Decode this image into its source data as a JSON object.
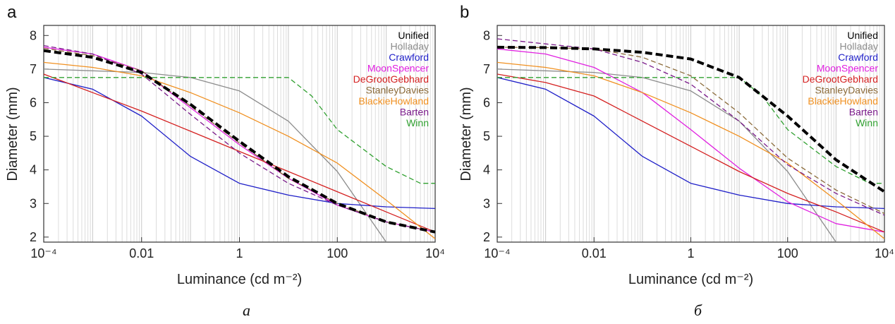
{
  "chart_data": [
    {
      "type": "line",
      "panel_label": "a",
      "caption": "a",
      "xlabel": "Luminance (cd m⁻²)",
      "ylabel": "Diameter (mm)",
      "xscale": "log",
      "xlim": [
        0.0001,
        10000
      ],
      "ylim": [
        1.85,
        8.3
      ],
      "xticks": [
        {
          "value": 0.0001,
          "label": "10⁻⁴"
        },
        {
          "value": 0.01,
          "label": "0.01"
        },
        {
          "value": 1,
          "label": "1"
        },
        {
          "value": 100,
          "label": "100"
        },
        {
          "value": 10000,
          "label": "10⁴"
        }
      ],
      "yticks": [
        2,
        3,
        4,
        5,
        6,
        7,
        8
      ],
      "grid": "vertical minor lines",
      "legend": "top-right",
      "series": [
        {
          "name": "Unified",
          "color": "#000000",
          "style": "thick-dashed",
          "x": [
            0.0001,
            0.001,
            0.01,
            0.1,
            1,
            10,
            100,
            1000,
            10000
          ],
          "y": [
            7.55,
            7.35,
            6.9,
            5.95,
            4.85,
            3.8,
            3.0,
            2.45,
            2.15
          ]
        },
        {
          "name": "Holladay",
          "color": "#8c8c8c",
          "style": "solid",
          "x": [
            0.0001,
            0.001,
            0.01,
            0.1,
            1,
            10,
            100,
            1000
          ],
          "y": [
            7.0,
            6.95,
            6.9,
            6.75,
            6.35,
            5.45,
            3.95,
            1.85
          ]
        },
        {
          "name": "Crawford",
          "color": "#1f1fc8",
          "style": "solid",
          "x": [
            0.0001,
            0.001,
            0.01,
            0.1,
            1,
            10,
            100,
            1000,
            10000
          ],
          "y": [
            6.75,
            6.4,
            5.6,
            4.4,
            3.6,
            3.25,
            3.0,
            2.9,
            2.85
          ]
        },
        {
          "name": "MoonSpencer",
          "color": "#e020e0",
          "style": "solid",
          "x": [
            0.0001,
            0.001,
            0.01,
            0.1,
            1,
            10,
            100,
            1000,
            10000
          ],
          "y": [
            7.65,
            7.45,
            6.95,
            5.85,
            4.75,
            3.75,
            2.95,
            2.45,
            2.15
          ]
        },
        {
          "name": "DeGrootGebhard",
          "color": "#d42020",
          "style": "solid",
          "x": [
            0.0001,
            0.001,
            0.01,
            0.1,
            1,
            10,
            100,
            1000,
            10000
          ],
          "y": [
            6.85,
            6.3,
            5.75,
            5.15,
            4.55,
            3.95,
            3.35,
            2.75,
            2.15
          ]
        },
        {
          "name": "StanleyDavies",
          "color": "#8b6b3a",
          "style": "dashed",
          "x": [
            0.0001,
            0.001,
            0.01,
            0.1,
            1,
            10,
            100,
            1000,
            10000
          ],
          "y": [
            7.62,
            7.4,
            6.95,
            5.9,
            4.8,
            3.75,
            3.0,
            2.45,
            2.15
          ]
        },
        {
          "name": "BlackieHowland",
          "color": "#f09020",
          "style": "solid",
          "x": [
            0.0001,
            0.001,
            0.01,
            0.1,
            1,
            10,
            100,
            1000,
            10000
          ],
          "y": [
            7.2,
            7.05,
            6.8,
            6.3,
            5.7,
            5.0,
            4.2,
            3.1,
            1.95
          ]
        },
        {
          "name": "Barten",
          "color": "#7a1a8a",
          "style": "dashed",
          "x": [
            0.0001,
            0.001,
            0.01,
            0.1,
            1,
            10,
            100,
            1000,
            10000
          ],
          "y": [
            7.7,
            7.45,
            6.85,
            5.65,
            4.5,
            3.6,
            2.95,
            2.45,
            2.15
          ]
        },
        {
          "name": "Winn",
          "color": "#30a030",
          "style": "dashed",
          "x": [
            0.0001,
            0.01,
            1,
            10,
            30,
            100,
            1000,
            5000,
            10000
          ],
          "y": [
            6.75,
            6.75,
            6.75,
            6.75,
            6.2,
            5.2,
            4.1,
            3.6,
            3.6
          ]
        }
      ]
    },
    {
      "type": "line",
      "panel_label": "b",
      "caption": "б",
      "xlabel": "Luminance (cd m⁻²)",
      "ylabel": "Diameter (mm)",
      "xscale": "log",
      "xlim": [
        0.0001,
        10000
      ],
      "ylim": [
        1.85,
        8.3
      ],
      "xticks": [
        {
          "value": 0.0001,
          "label": "10⁻⁴"
        },
        {
          "value": 0.01,
          "label": "0.01"
        },
        {
          "value": 1,
          "label": "1"
        },
        {
          "value": 100,
          "label": "100"
        },
        {
          "value": 10000,
          "label": "10⁴"
        }
      ],
      "yticks": [
        2,
        3,
        4,
        5,
        6,
        7,
        8
      ],
      "grid": "vertical minor lines",
      "legend": "top-right",
      "series": [
        {
          "name": "Unified",
          "color": "#000000",
          "style": "thick-dashed",
          "x": [
            0.0001,
            0.001,
            0.01,
            0.1,
            1,
            10,
            100,
            1000,
            10000
          ],
          "y": [
            7.65,
            7.64,
            7.6,
            7.5,
            7.3,
            6.75,
            5.6,
            4.3,
            3.35
          ]
        },
        {
          "name": "Holladay",
          "color": "#8c8c8c",
          "style": "solid",
          "x": [
            0.0001,
            0.001,
            0.01,
            0.1,
            1,
            10,
            100,
            1000
          ],
          "y": [
            7.0,
            6.95,
            6.9,
            6.75,
            6.35,
            5.45,
            3.95,
            1.85
          ]
        },
        {
          "name": "Crawford",
          "color": "#1f1fc8",
          "style": "solid",
          "x": [
            0.0001,
            0.001,
            0.01,
            0.1,
            1,
            10,
            100,
            1000,
            10000
          ],
          "y": [
            6.75,
            6.4,
            5.6,
            4.4,
            3.6,
            3.25,
            3.0,
            2.9,
            2.85
          ]
        },
        {
          "name": "MoonSpencer",
          "color": "#e020e0",
          "style": "solid",
          "x": [
            0.0001,
            0.001,
            0.01,
            0.1,
            1,
            10,
            100,
            1000,
            10000
          ],
          "y": [
            7.6,
            7.45,
            7.05,
            6.3,
            5.2,
            4.05,
            3.05,
            2.4,
            2.15
          ]
        },
        {
          "name": "DeGrootGebhard",
          "color": "#d42020",
          "style": "solid",
          "x": [
            0.0001,
            0.001,
            0.01,
            0.1,
            1,
            10,
            100,
            1000,
            10000
          ],
          "y": [
            6.85,
            6.6,
            6.2,
            5.45,
            4.7,
            3.95,
            3.3,
            2.75,
            2.15
          ]
        },
        {
          "name": "StanleyDavies",
          "color": "#8b6b3a",
          "style": "dashed",
          "x": [
            0.0001,
            0.001,
            0.01,
            0.1,
            1,
            10,
            100,
            1000,
            10000
          ],
          "y": [
            7.65,
            7.64,
            7.6,
            7.35,
            6.8,
            5.7,
            4.35,
            3.4,
            2.7
          ]
        },
        {
          "name": "BlackieHowland",
          "color": "#f09020",
          "style": "solid",
          "x": [
            0.0001,
            0.001,
            0.01,
            0.1,
            1,
            10,
            100,
            1000,
            10000
          ],
          "y": [
            7.2,
            7.05,
            6.8,
            6.3,
            5.7,
            5.0,
            4.2,
            3.1,
            1.95
          ]
        },
        {
          "name": "Barten",
          "color": "#7a1a8a",
          "style": "dashed",
          "x": [
            0.0001,
            0.001,
            0.01,
            0.1,
            1,
            10,
            100,
            1000,
            10000
          ],
          "y": [
            7.9,
            7.75,
            7.6,
            7.2,
            6.55,
            5.45,
            4.15,
            3.3,
            2.65
          ]
        },
        {
          "name": "Winn",
          "color": "#30a030",
          "style": "dashed",
          "x": [
            0.0001,
            0.01,
            1,
            10,
            30,
            100,
            1000,
            5000,
            10000
          ],
          "y": [
            6.75,
            6.75,
            6.75,
            6.75,
            6.2,
            5.2,
            4.1,
            3.6,
            3.6
          ]
        }
      ]
    }
  ]
}
